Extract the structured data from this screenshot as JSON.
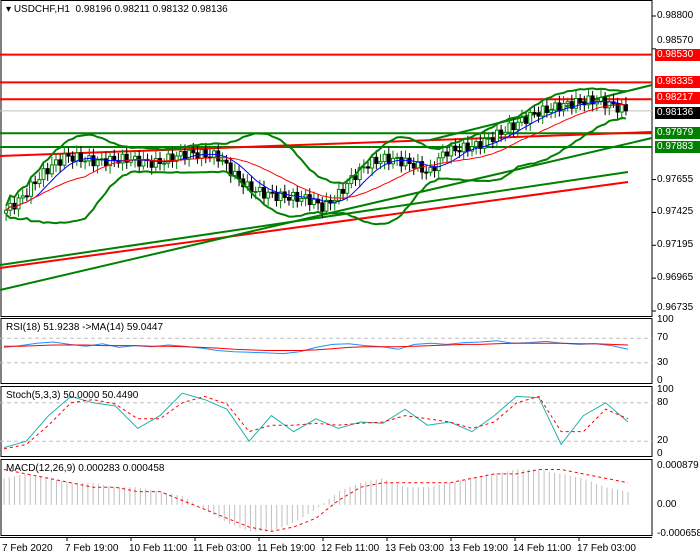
{
  "header": {
    "symbol": "USDCHF,H1",
    "open": "0.98196",
    "high": "0.98211",
    "low": "0.98132",
    "close": "0.98136"
  },
  "price_axis": {
    "ticks": [
      "0.98800",
      "0.98570",
      "0.97655",
      "0.97425",
      "0.97195",
      "0.96965",
      "0.96735"
    ]
  },
  "levels": [
    {
      "label": "0.98530",
      "value": 0.9853,
      "color": "#ff0000"
    },
    {
      "label": "0.98335",
      "value": 0.98335,
      "color": "#ff0000"
    },
    {
      "label": "0.98217",
      "value": 0.98217,
      "color": "#ff0000"
    },
    {
      "label": "0.98136",
      "value": 0.98136,
      "color": "#000000"
    },
    {
      "label": "0.97979",
      "value": 0.97979,
      "color": "#008000"
    },
    {
      "label": "0.97883",
      "value": 0.97883,
      "color": "#008000"
    }
  ],
  "time_axis": [
    "7 Feb 2020",
    "7 Feb 19:00",
    "10 Feb 11:00",
    "11 Feb 03:00",
    "11 Feb 19:00",
    "12 Feb 11:00",
    "13 Feb 03:00",
    "13 Feb 19:00",
    "14 Feb 11:00",
    "17 Feb 03:00"
  ],
  "rsi": {
    "title": "RSI(18) 51.9238  ->MA(14) 59.0447",
    "ticks": [
      "100",
      "70",
      "30",
      "0"
    ]
  },
  "stoch": {
    "title": "Stoch(5,3,3) 50.0000 50.4490",
    "ticks": [
      "100",
      "80",
      "20",
      "0"
    ]
  },
  "macd": {
    "title": "MACD(12,26,9) 0.000283 0.000458",
    "ticks": [
      "0.000879",
      "0.00",
      "-0.000658"
    ]
  },
  "colors": {
    "bull": "#008000",
    "bear": "#000000",
    "ma_fast": "#0000ff",
    "ma_slow": "#ff0000",
    "bands": "#008000",
    "rsi": "#1e90ff",
    "stoch": "#20b2aa",
    "signal": "#ff0000",
    "hist": "#c0c0c0"
  },
  "chart_data": {
    "type": "candlestick",
    "ylim": [
      0.96735,
      0.988
    ],
    "closes": [
      0.9744,
      0.9752,
      0.9765,
      0.9775,
      0.9782,
      0.978,
      0.9778,
      0.9779,
      0.978,
      0.9778,
      0.9777,
      0.9781,
      0.9784,
      0.9783,
      0.9782,
      0.977,
      0.976,
      0.9756,
      0.9754,
      0.9753,
      0.9752,
      0.9746,
      0.9755,
      0.9768,
      0.9777,
      0.978,
      0.9779,
      0.9776,
      0.977,
      0.9785,
      0.9787,
      0.9789,
      0.9794,
      0.98,
      0.9806,
      0.9812,
      0.9815,
      0.9818,
      0.982,
      0.9821,
      0.9818,
      0.98136
    ],
    "rsi": [
      55,
      58,
      62,
      64,
      60,
      57,
      61,
      55,
      58,
      56,
      59,
      57,
      54,
      50,
      48,
      47,
      46,
      45,
      48,
      55,
      60,
      61,
      58,
      56,
      52,
      60,
      62,
      60,
      63,
      64,
      66,
      62,
      63,
      65,
      62,
      60,
      61,
      58,
      52
    ],
    "rsi_ma": [
      57,
      57,
      58,
      59,
      59,
      59,
      58,
      58,
      58,
      57,
      57,
      56,
      55,
      54,
      52,
      51,
      50,
      50,
      50,
      51,
      53,
      55,
      56,
      56,
      56,
      57,
      58,
      59,
      60,
      60,
      61,
      62,
      62,
      62,
      62,
      61,
      61,
      60,
      59
    ],
    "stoch": [
      10,
      20,
      60,
      90,
      80,
      75,
      40,
      60,
      95,
      85,
      70,
      20,
      60,
      35,
      55,
      40,
      50,
      48,
      70,
      45,
      50,
      35,
      60,
      90,
      88,
      15,
      60,
      80,
      50
    ],
    "stoch_signal": [
      8,
      15,
      45,
      80,
      85,
      78,
      55,
      55,
      80,
      90,
      78,
      35,
      45,
      45,
      48,
      45,
      48,
      50,
      60,
      55,
      50,
      40,
      50,
      80,
      90,
      35,
      35,
      70,
      55
    ],
    "macd_hist": [
      0.0006,
      0.0007,
      0.0006,
      0.0005,
      0.0005,
      0.0004,
      0.0004,
      0.0003,
      0.0002,
      -0.0001,
      -0.0004,
      -0.0006,
      -0.0006,
      -0.0004,
      -0.0001,
      0.0003,
      0.0005,
      0.0006,
      0.0004,
      0.0004,
      0.0005,
      0.0006,
      0.0007,
      0.0008,
      0.0008,
      0.0007,
      0.0006,
      0.0004,
      0.0003
    ],
    "macd_signal": [
      0.0008,
      0.0007,
      0.0006,
      0.0005,
      0.0004,
      0.0004,
      0.0003,
      0.0003,
      0.0001,
      -0.0001,
      -0.0003,
      -0.0005,
      -0.0006,
      -0.0005,
      -0.0003,
      0.0001,
      0.0004,
      0.0005,
      0.0005,
      0.0005,
      0.0005,
      0.0006,
      0.0007,
      0.0007,
      0.0008,
      0.0008,
      0.0007,
      0.0006,
      0.0005
    ]
  }
}
